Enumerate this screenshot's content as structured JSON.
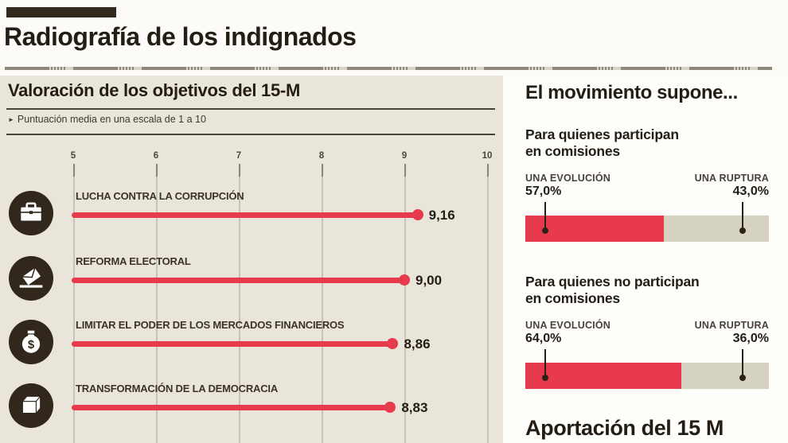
{
  "header": {
    "title": "Radiografía de los indignados"
  },
  "left_panel": {
    "title": "Valoración de los objetivos del 15-M",
    "bullet": "►",
    "subtitle": "Puntuación media en una escala de 1 a 10"
  },
  "right_panel": {
    "title": "El movimiento supone...",
    "sections": [
      {
        "heading_line1": "Para quienes participan",
        "heading_line2": "en comisiones",
        "left_label": "UNA EVOLUCIÓN",
        "left_value": "57,0%",
        "left_pct": 57.0,
        "right_label": "UNA RUPTURA",
        "right_value": "43,0%",
        "right_pct": 43.0
      },
      {
        "heading_line1": "Para quienes no participan",
        "heading_line2": "en comisiones",
        "left_label": "UNA EVOLUCIÓN",
        "left_value": "64,0%",
        "left_pct": 64.0,
        "right_label": "UNA RUPTURA",
        "right_value": "36,0%",
        "right_pct": 36.0
      }
    ],
    "footer_title": "Aportación del 15 M"
  },
  "chart_data": [
    {
      "type": "bar",
      "orientation": "horizontal",
      "title": "Valoración de los objetivos del 15-M",
      "subtitle": "Puntuación media en una escala de 1 a 10",
      "categories": [
        "LUCHA CONTRA LA CORRUPCIÓN",
        "REFORMA ELECTORAL",
        "LIMITAR EL PODER DE LOS MERCADOS FINANCIEROS",
        "TRANSFORMACIÓN DE LA DEMOCRACIA"
      ],
      "values": [
        9.16,
        9.0,
        8.86,
        8.83
      ],
      "value_labels": [
        "9,16",
        "9,00",
        "8,86",
        "8,83"
      ],
      "icons": [
        "briefcase-icon",
        "ballot-box-icon",
        "money-bag-icon",
        "box-icon"
      ],
      "x_ticks": [
        "5",
        "6",
        "7",
        "8",
        "9",
        "10"
      ],
      "xlim": [
        5,
        10
      ],
      "grid": true,
      "bar_color": "#e83a4d"
    },
    {
      "type": "bar",
      "stacked": true,
      "title": "El movimiento supone... Para quienes participan en comisiones",
      "series": [
        {
          "name": "UNA EVOLUCIÓN",
          "values": [
            57.0
          ]
        },
        {
          "name": "UNA RUPTURA",
          "values": [
            43.0
          ]
        }
      ],
      "colors": [
        "#e83a4d",
        "#d6d2c2"
      ]
    },
    {
      "type": "bar",
      "stacked": true,
      "title": "El movimiento supone... Para quienes no participan en comisiones",
      "series": [
        {
          "name": "UNA EVOLUCIÓN",
          "values": [
            64.0
          ]
        },
        {
          "name": "UNA RUPTURA",
          "values": [
            36.0
          ]
        }
      ],
      "colors": [
        "#e83a4d",
        "#d6d2c2"
      ]
    }
  ],
  "colors": {
    "accent_red": "#e83a4d",
    "panel_beige": "#e9e5da",
    "dark_brown": "#31271c",
    "bar_gray": "#d6d2c2"
  }
}
